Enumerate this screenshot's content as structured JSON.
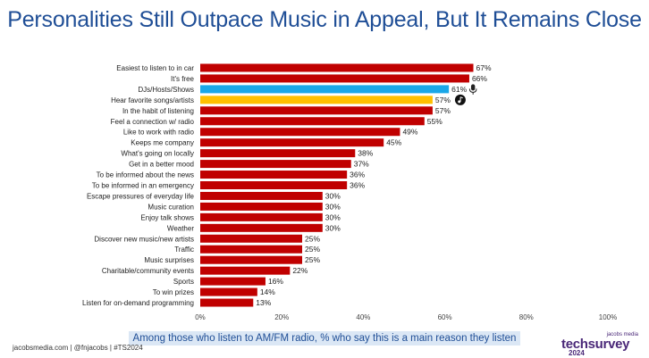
{
  "title": "Personalities Still Outpace Music in Appeal, But It Remains Close",
  "subtitle": "Among those who listen to AM/FM radio, % who say this is a main reason they listen",
  "footer": "jacobsmedia.com  |  @fnjacobs  |  #TS2024",
  "logo": {
    "small": "jacobs media",
    "big": "techsurvey",
    "year": "2024"
  },
  "colors": {
    "default": "#c00000",
    "djs": "#1aa7e8",
    "music": "#ffc000",
    "title": "#1f4e96"
  },
  "chart_data": {
    "type": "bar",
    "orientation": "horizontal",
    "categories": [
      "Easiest to listen to in car",
      "It's free",
      "DJs/Hosts/Shows",
      "Hear favorite songs/artists",
      "In the habit of listening",
      "Feel a connection w/ radio",
      "Like to work with radio",
      "Keeps me company",
      "What's going on locally",
      "Get in a better mood",
      "To be informed about the news",
      "To be informed in an emergency",
      "Escape pressures of everyday life",
      "Music curation",
      "Enjoy talk shows",
      "Weather",
      "Discover new music/new artists",
      "Traffic",
      "Music surprises",
      "Charitable/community events",
      "Sports",
      "To win prizes",
      "Listen for on-demand programming"
    ],
    "values": [
      67,
      66,
      61,
      57,
      57,
      55,
      49,
      45,
      38,
      37,
      36,
      36,
      30,
      30,
      30,
      30,
      25,
      25,
      25,
      22,
      16,
      14,
      13
    ],
    "value_labels": [
      "67%",
      "66%",
      "61%",
      "57%",
      "57%",
      "55%",
      "49%",
      "45%",
      "38%",
      "37%",
      "36%",
      "36%",
      "30%",
      "30%",
      "30%",
      "30%",
      "25%",
      "25%",
      "25%",
      "22%",
      "16%",
      "14%",
      "13%"
    ],
    "highlights": {
      "2": "djs",
      "3": "music"
    },
    "icons": {
      "2": "microphone-icon",
      "3": "music-note-icon"
    },
    "xlim": [
      0,
      100
    ],
    "xticks": [
      0,
      20,
      40,
      60,
      80,
      100
    ],
    "xtick_labels": [
      "0%",
      "20%",
      "40%",
      "60%",
      "80%",
      "100%"
    ],
    "grid": false,
    "legend": "none"
  }
}
